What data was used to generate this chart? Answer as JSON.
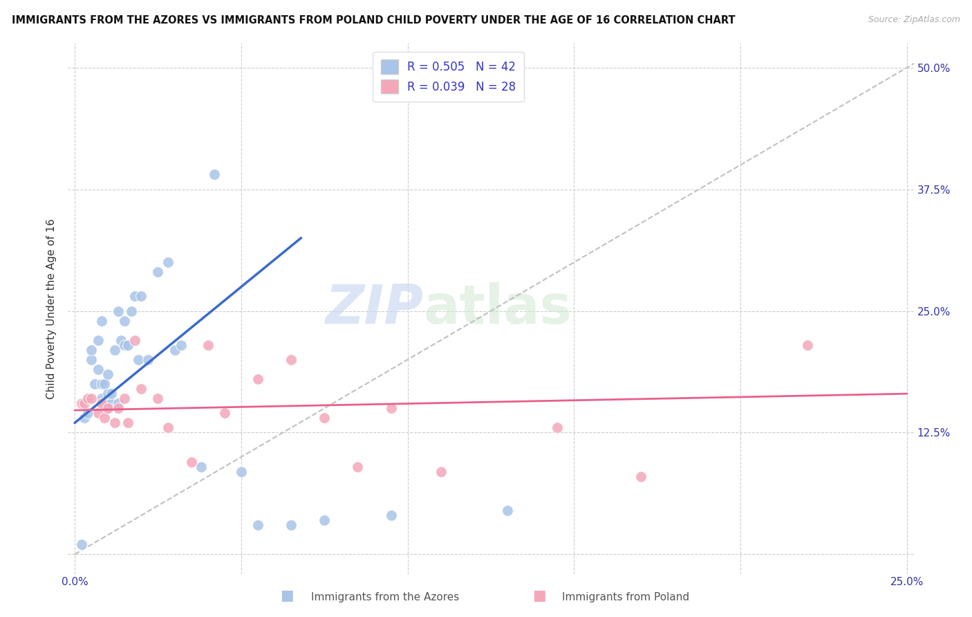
{
  "title": "IMMIGRANTS FROM THE AZORES VS IMMIGRANTS FROM POLAND CHILD POVERTY UNDER THE AGE OF 16 CORRELATION CHART",
  "source": "Source: ZipAtlas.com",
  "ylabel": "Child Poverty Under the Age of 16",
  "x_ticks": [
    0.0,
    0.05,
    0.1,
    0.15,
    0.2,
    0.25
  ],
  "x_tick_labels": [
    "0.0%",
    "",
    "",
    "",
    "",
    "25.0%"
  ],
  "y_ticks": [
    0.0,
    0.125,
    0.25,
    0.375,
    0.5
  ],
  "y_tick_labels": [
    "",
    "12.5%",
    "25.0%",
    "37.5%",
    "50.0%"
  ],
  "xlim": [
    -0.002,
    0.252
  ],
  "ylim": [
    -0.02,
    0.525
  ],
  "legend_azores_R": "R = 0.505",
  "legend_azores_N": "N = 42",
  "legend_poland_R": "R = 0.039",
  "legend_poland_N": "N = 28",
  "watermark_zip": "ZIP",
  "watermark_atlas": "atlas",
  "azores_color": "#a8c4e8",
  "poland_color": "#f4a7b9",
  "azores_line_color": "#3a6bc9",
  "poland_line_color": "#e8608a",
  "diagonal_line_color": "#c0c0c0",
  "azores_x": [
    0.002,
    0.003,
    0.004,
    0.005,
    0.005,
    0.006,
    0.007,
    0.007,
    0.008,
    0.008,
    0.008,
    0.009,
    0.009,
    0.01,
    0.01,
    0.01,
    0.011,
    0.011,
    0.012,
    0.013,
    0.013,
    0.014,
    0.015,
    0.015,
    0.016,
    0.017,
    0.018,
    0.019,
    0.02,
    0.022,
    0.025,
    0.028,
    0.03,
    0.032,
    0.038,
    0.042,
    0.05,
    0.055,
    0.065,
    0.075,
    0.095,
    0.13
  ],
  "azores_y": [
    0.01,
    0.14,
    0.145,
    0.2,
    0.21,
    0.175,
    0.19,
    0.22,
    0.16,
    0.175,
    0.24,
    0.155,
    0.175,
    0.15,
    0.165,
    0.185,
    0.155,
    0.165,
    0.21,
    0.155,
    0.25,
    0.22,
    0.215,
    0.24,
    0.215,
    0.25,
    0.265,
    0.2,
    0.265,
    0.2,
    0.29,
    0.3,
    0.21,
    0.215,
    0.09,
    0.39,
    0.085,
    0.03,
    0.03,
    0.035,
    0.04,
    0.045
  ],
  "poland_x": [
    0.002,
    0.003,
    0.004,
    0.005,
    0.007,
    0.008,
    0.009,
    0.01,
    0.012,
    0.013,
    0.015,
    0.016,
    0.018,
    0.02,
    0.025,
    0.028,
    0.035,
    0.04,
    0.045,
    0.055,
    0.065,
    0.075,
    0.085,
    0.095,
    0.11,
    0.145,
    0.17,
    0.22
  ],
  "poland_y": [
    0.155,
    0.155,
    0.16,
    0.16,
    0.145,
    0.155,
    0.14,
    0.15,
    0.135,
    0.15,
    0.16,
    0.135,
    0.22,
    0.17,
    0.16,
    0.13,
    0.095,
    0.215,
    0.145,
    0.18,
    0.2,
    0.14,
    0.09,
    0.15,
    0.085,
    0.13,
    0.08,
    0.215
  ],
  "background_color": "#ffffff",
  "grid_color": "#cccccc"
}
